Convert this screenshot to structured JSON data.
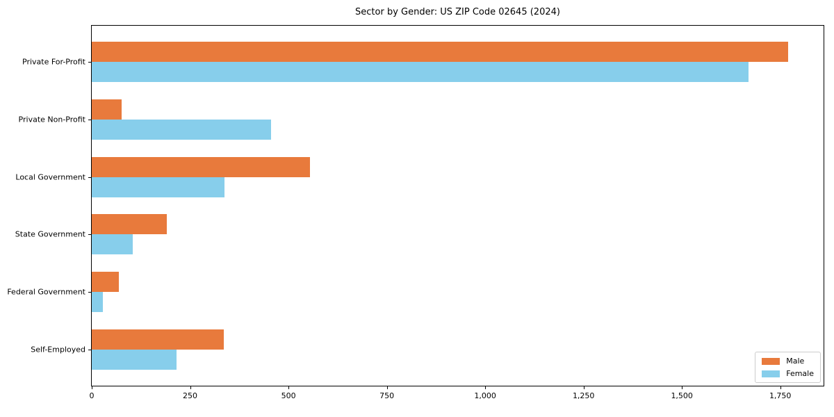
{
  "chart_data": {
    "type": "bar",
    "orientation": "horizontal",
    "title": "Sector by Gender: US ZIP Code 02645 (2024)",
    "categories": [
      "Private For-Profit",
      "Private Non-Profit",
      "Local Government",
      "State Government",
      "Federal Government",
      "Self-Employed"
    ],
    "series": [
      {
        "name": "Male",
        "color": "#e87a3c",
        "values": [
          1770,
          75,
          555,
          190,
          68,
          335
        ]
      },
      {
        "name": "Female",
        "color": "#87ceeb",
        "values": [
          1670,
          455,
          338,
          105,
          28,
          215
        ]
      }
    ],
    "xlabel": "",
    "ylabel": "",
    "xlim": [
      0,
      1860
    ],
    "xticks": [
      0,
      250,
      500,
      750,
      1000,
      1250,
      1500,
      1750
    ],
    "xtick_labels": [
      "0",
      "250",
      "500",
      "750",
      "1,000",
      "1,250",
      "1,500",
      "1,750"
    ],
    "grid": false,
    "frame": "full-box",
    "legend_position": "lower right",
    "background_color": "#ffffff",
    "text_color": "#000000"
  }
}
